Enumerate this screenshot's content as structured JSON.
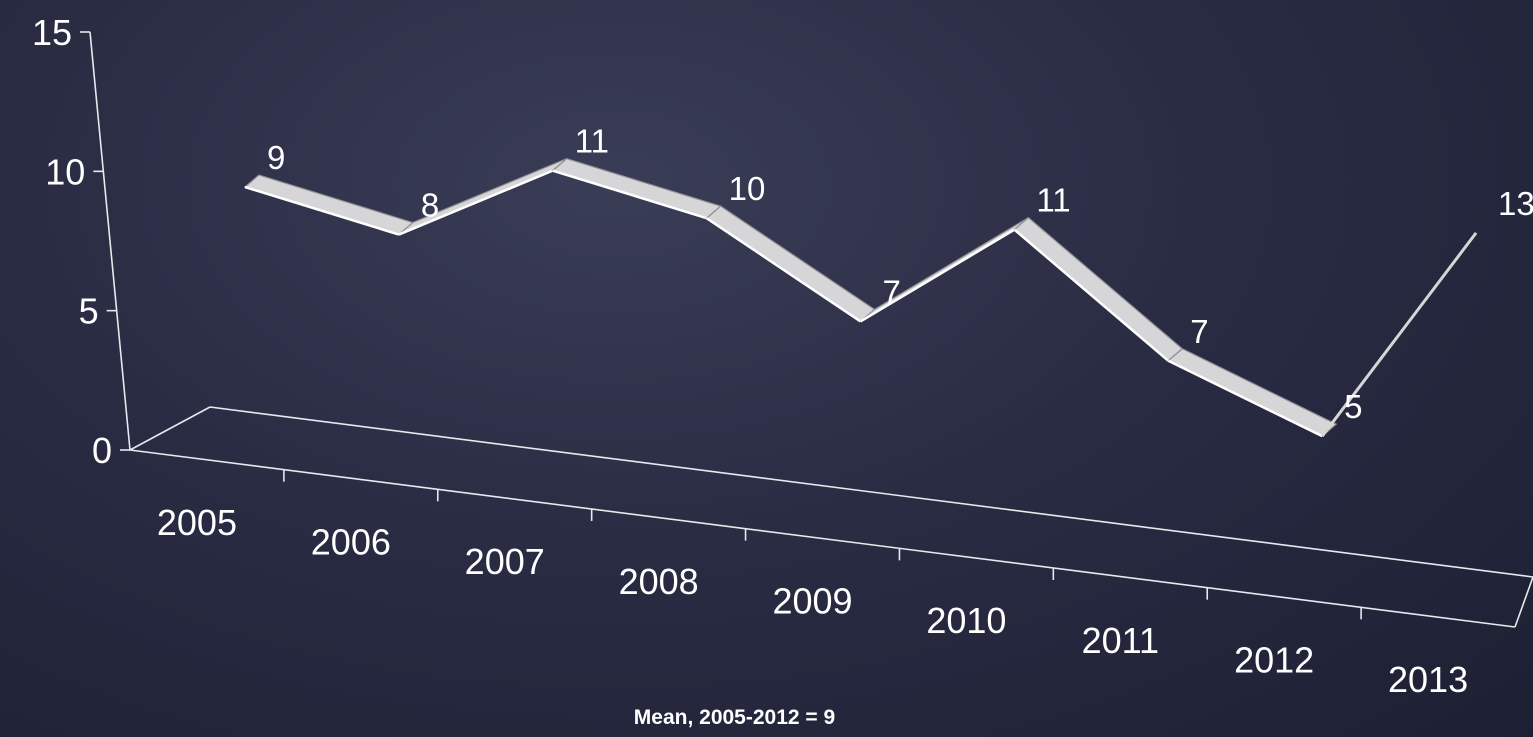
{
  "chart_data": {
    "type": "line",
    "categories": [
      "2005",
      "2006",
      "2007",
      "2008",
      "2009",
      "2010",
      "2011",
      "2012",
      "2013"
    ],
    "values": [
      9,
      8,
      11,
      10,
      7,
      11,
      7,
      5,
      13
    ],
    "title": "",
    "xlabel": "",
    "ylabel": "",
    "ylim": [
      0,
      15
    ],
    "yticks": [
      "0",
      "5",
      "10",
      "15"
    ],
    "grid": false,
    "legend": "none",
    "style": "3d-ribbon",
    "colors": {
      "ribbon_top": "#d6d6d8",
      "ribbon_side": "#8f8f94",
      "axis": "#e8e8ee",
      "text": "#ffffff"
    }
  },
  "footnote": "Mean, 2005-2012 = 9"
}
